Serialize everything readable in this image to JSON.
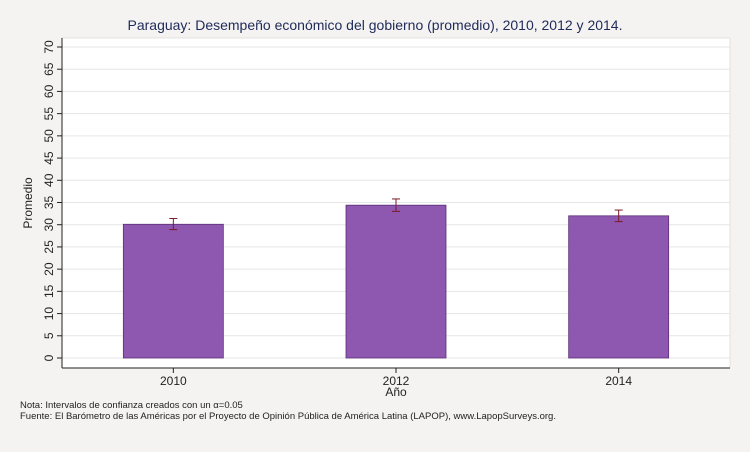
{
  "chart_data": {
    "type": "bar",
    "title": "Paraguay: Desempeño económico del gobierno (promedio), 2010, 2012 y 2014.",
    "xlabel": "Año",
    "ylabel": "Promedio",
    "categories": [
      "2010",
      "2012",
      "2014"
    ],
    "values": [
      30.1,
      34.4,
      32.0
    ],
    "ci_low": [
      28.9,
      33.0,
      30.7
    ],
    "ci_high": [
      31.4,
      35.8,
      33.3
    ],
    "ylim": [
      0,
      70
    ],
    "yticks": [
      0,
      5,
      10,
      15,
      20,
      25,
      30,
      35,
      40,
      45,
      50,
      55,
      60,
      65,
      70
    ],
    "grid": true,
    "legend": "none",
    "bar_color": "#8e58b0",
    "errorbar_color": "#7a1a2a"
  },
  "notes": {
    "nota": "Nota: Intervalos de confianza creados con un α=0.05",
    "fuente": "Fuente: El Barómetro de las Américas por el Proyecto de Opinión Pública de América Latina (LAPOP), www.LapopSurveys.org."
  }
}
